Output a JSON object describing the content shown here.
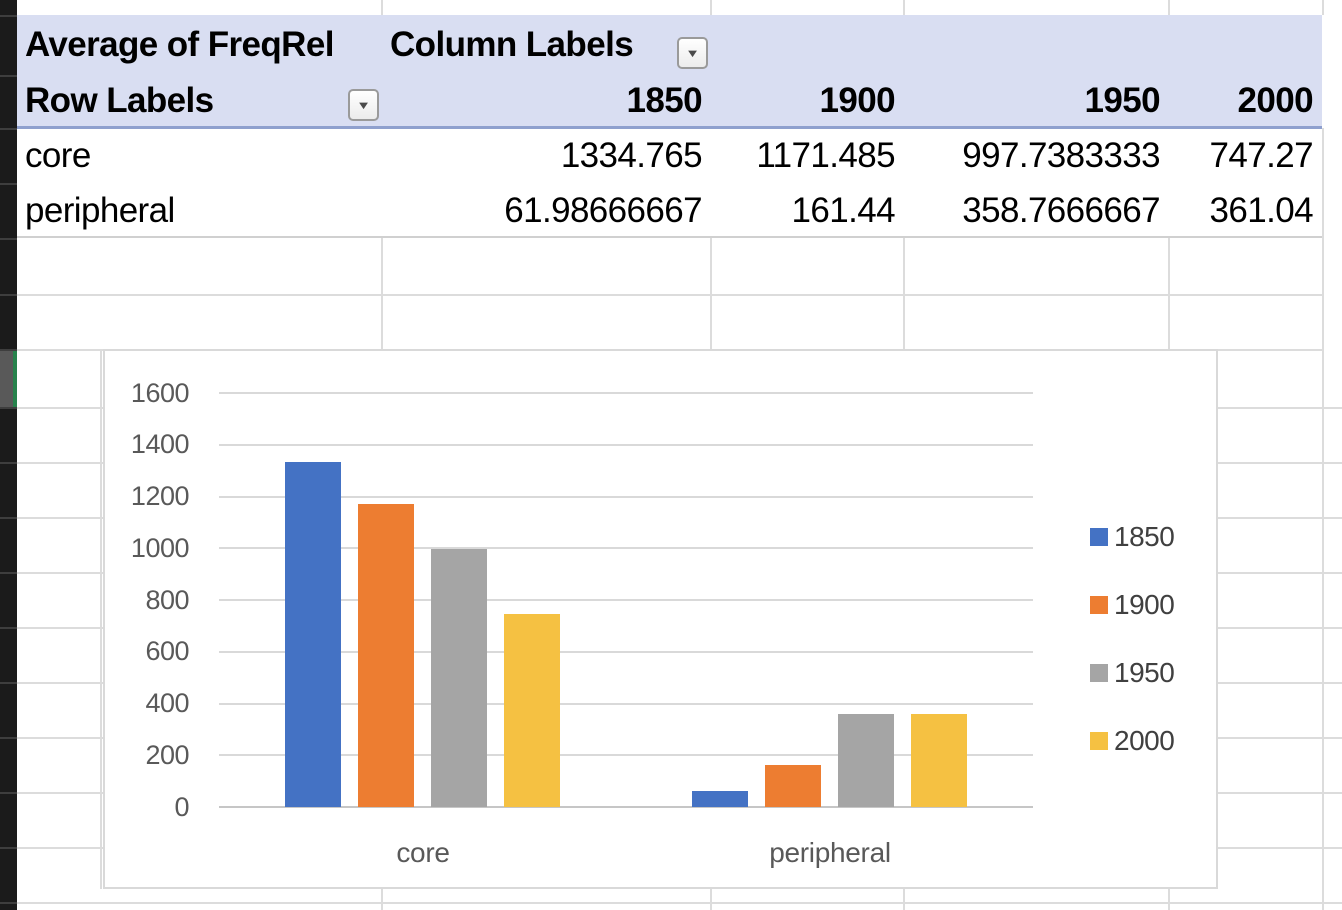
{
  "table": {
    "title_cell": "Average of FreqRel",
    "column_labels_cell": "Column Labels",
    "row_labels_cell": "Row Labels",
    "columns": [
      "1850",
      "1900",
      "1950",
      "2000"
    ],
    "rows": [
      {
        "label": "core",
        "values": [
          "1334.765",
          "1171.485",
          "997.7383333",
          "747.27"
        ]
      },
      {
        "label": "peripheral",
        "values": [
          "61.98666667",
          "161.44",
          "358.7666667",
          "361.04"
        ]
      }
    ]
  },
  "icons": {
    "dropdown": "▼"
  },
  "colors": {
    "header_fill": "#d9def2",
    "header_border": "#8fa0ce",
    "gridline": "#dcdcdc",
    "gutter": "#1b1b1b",
    "gutter_selected": "#595959",
    "gutter_selected_accent": "#27824c",
    "series_1850": "#4472c4",
    "series_1900": "#ed7d31",
    "series_1950": "#a5a5a5",
    "series_2000": "#f5c142"
  },
  "chart_data": {
    "type": "bar",
    "categories": [
      "core",
      "peripheral"
    ],
    "series": [
      {
        "name": "1850",
        "color": "#4472c4",
        "values": [
          1334.765,
          61.98666667
        ]
      },
      {
        "name": "1900",
        "color": "#ed7d31",
        "values": [
          1171.485,
          161.44
        ]
      },
      {
        "name": "1950",
        "color": "#a5a5a5",
        "values": [
          997.7383333,
          358.7666667
        ]
      },
      {
        "name": "2000",
        "color": "#f5c142",
        "values": [
          747.27,
          361.04
        ]
      }
    ],
    "title": "",
    "xlabel": "",
    "ylabel": "",
    "ylim": [
      0,
      1600
    ],
    "yticks": [
      "0",
      "200",
      "400",
      "600",
      "800",
      "1000",
      "1200",
      "1400",
      "1600"
    ],
    "grid": true,
    "legend_position": "right"
  }
}
